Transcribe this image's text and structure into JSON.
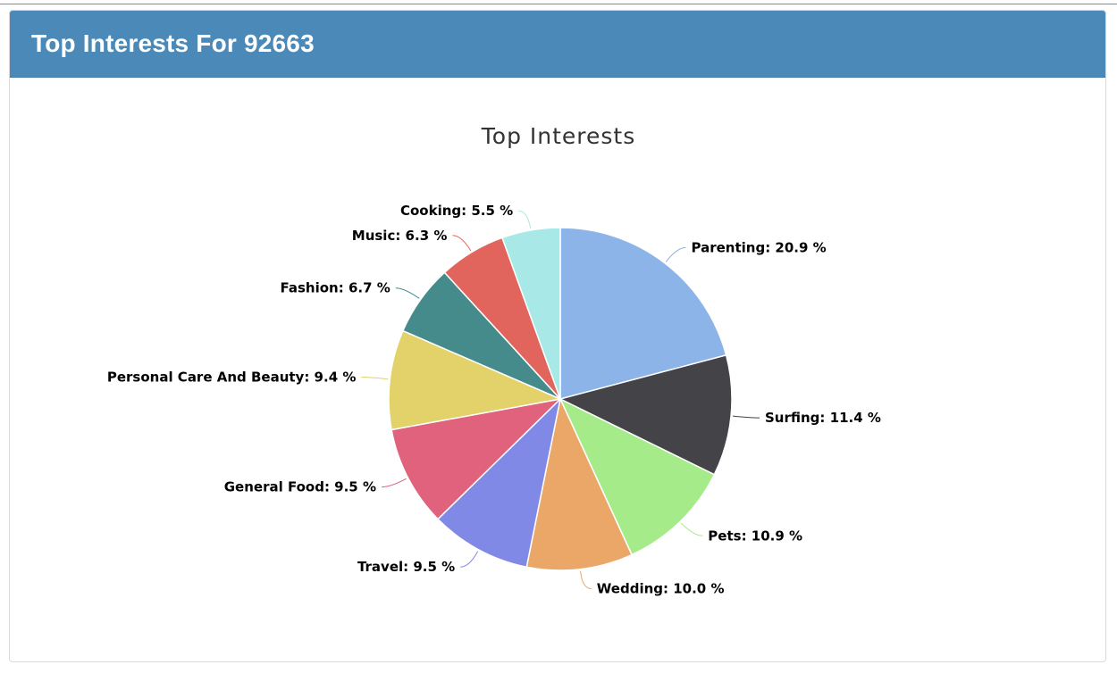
{
  "panel": {
    "title": "Top Interests For 92663"
  },
  "chart_data": {
    "type": "pie",
    "title": "Top Interests",
    "unit": "%",
    "slices": [
      {
        "label": "Parenting",
        "value": 20.9,
        "color": "#8db4e8"
      },
      {
        "label": "Surfing",
        "value": 11.4,
        "color": "#434348"
      },
      {
        "label": "Pets",
        "value": 10.9,
        "color": "#a6eb89"
      },
      {
        "label": "Wedding",
        "value": 10.0,
        "color": "#eaa768"
      },
      {
        "label": "Travel",
        "value": 9.5,
        "color": "#8189e6"
      },
      {
        "label": "General Food",
        "value": 9.5,
        "color": "#e0627c"
      },
      {
        "label": "Personal Care And Beauty",
        "value": 9.4,
        "color": "#e3d26a"
      },
      {
        "label": "Fashion",
        "value": 6.7,
        "color": "#458b8b"
      },
      {
        "label": "Music",
        "value": 6.3,
        "color": "#e1655d"
      },
      {
        "label": "Cooking",
        "value": 5.5,
        "color": "#a8e8e6"
      }
    ],
    "start_angle_deg": 0,
    "direction": "clockwise",
    "data_label_format": "{label}: {value} %"
  }
}
